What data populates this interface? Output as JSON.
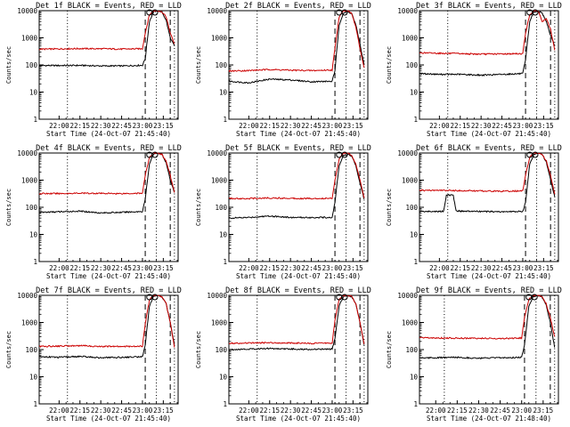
{
  "figure": {
    "ylabel": "Counts/sec",
    "xlabel": "Start Time (24-Oct-07 21:45:40)",
    "xtick_labels": [
      "22:00",
      "22:15",
      "22:30",
      "22:45",
      "23:00",
      "23:15"
    ],
    "ytick_labels": [
      "1",
      "10",
      "100",
      "1000",
      "10000"
    ],
    "line_colors": {
      "events": "#000000",
      "lld": "#cc0000"
    }
  },
  "chart_data": [
    {
      "type": "line",
      "title": "Det 1f BLACK = Events, RED = LLD",
      "xlabel": "Start Time (24-Oct-07 21:45:40)",
      "ylabel": "Counts/sec",
      "xlim": [
        "21:45:40",
        "23:25:40"
      ],
      "ylim": [
        1,
        10000
      ],
      "yscale": "log",
      "vlines": [
        {
          "time": "22:06",
          "style": "dotted"
        },
        {
          "time": "23:02",
          "style": "dashed"
        },
        {
          "time": "23:10",
          "style": "dotted"
        },
        {
          "time": "23:20",
          "style": "dashed"
        },
        {
          "time": "23:23",
          "style": "dotted"
        }
      ],
      "markers": [
        "23:05",
        "23:09"
      ],
      "series": [
        {
          "color": "#000000",
          "x": [
            "21:45:40",
            "22:00",
            "22:15",
            "22:30",
            "22:45",
            "23:00",
            "23:02",
            "23:05",
            "23:08",
            "23:11",
            "23:14",
            "23:17",
            "23:20",
            "23:23"
          ],
          "y": [
            95,
            95,
            96,
            92,
            92,
            97,
            170,
            4000,
            9000,
            10000,
            9000,
            4500,
            1000,
            500
          ]
        },
        {
          "color": "#cc0000",
          "x": [
            "21:45:40",
            "22:00",
            "22:15",
            "22:30",
            "22:45",
            "23:00",
            "23:02",
            "23:05",
            "23:08",
            "23:11",
            "23:14",
            "23:17",
            "23:20",
            "23:23"
          ],
          "y": [
            380,
            390,
            400,
            395,
            385,
            395,
            1500,
            7000,
            10000,
            10000,
            9000,
            6000,
            1500,
            600
          ]
        }
      ]
    },
    {
      "type": "line",
      "title": "Det 2f BLACK = Events, RED = LLD",
      "xlabel": "Start Time (24-Oct-07 21:45:40)",
      "ylabel": "Counts/sec",
      "xlim": [
        "21:45:40",
        "23:25:40"
      ],
      "ylim": [
        1,
        10000
      ],
      "yscale": "log",
      "vlines": [
        {
          "time": "22:06",
          "style": "dotted"
        },
        {
          "time": "23:02",
          "style": "dashed"
        },
        {
          "time": "23:10",
          "style": "dotted"
        },
        {
          "time": "23:20",
          "style": "dashed"
        },
        {
          "time": "23:23",
          "style": "dotted"
        }
      ],
      "markers": [
        "23:05",
        "23:09"
      ],
      "series": [
        {
          "color": "#000000",
          "x": [
            "21:45:40",
            "22:00",
            "22:15",
            "22:30",
            "22:45",
            "23:00",
            "23:02",
            "23:05",
            "23:08",
            "23:11",
            "23:14",
            "23:17",
            "23:20",
            "23:23"
          ],
          "y": [
            25,
            22,
            30,
            28,
            24,
            25,
            60,
            3000,
            8000,
            9000,
            8000,
            3000,
            600,
            100
          ]
        },
        {
          "color": "#cc0000",
          "x": [
            "21:45:40",
            "22:00",
            "22:15",
            "22:30",
            "22:45",
            "23:00",
            "23:02",
            "23:05",
            "23:08",
            "23:11",
            "23:14",
            "23:17",
            "23:20",
            "23:23"
          ],
          "y": [
            60,
            62,
            68,
            64,
            62,
            65,
            400,
            6000,
            10000,
            10000,
            8000,
            2500,
            400,
            80
          ]
        }
      ]
    },
    {
      "type": "line",
      "title": "Det 3f BLACK = Events, RED = LLD",
      "xlabel": "Start Time (24-Oct-07 21:45:40)",
      "ylabel": "Counts/sec",
      "xlim": [
        "21:45:40",
        "23:25:40"
      ],
      "ylim": [
        1,
        10000
      ],
      "yscale": "log",
      "vlines": [
        {
          "time": "22:06",
          "style": "dotted"
        },
        {
          "time": "23:02",
          "style": "dashed"
        },
        {
          "time": "23:10",
          "style": "dotted"
        },
        {
          "time": "23:20",
          "style": "dashed"
        },
        {
          "time": "23:23",
          "style": "dotted"
        }
      ],
      "markers": [
        "23:05",
        "23:09"
      ],
      "series": [
        {
          "color": "#000000",
          "x": [
            "21:45:40",
            "22:00",
            "22:15",
            "22:30",
            "22:45",
            "23:00",
            "23:02",
            "23:05",
            "23:08",
            "23:11",
            "23:14",
            "23:17",
            "23:20",
            "23:23"
          ],
          "y": [
            48,
            45,
            45,
            42,
            45,
            48,
            150,
            4000,
            9000,
            9500,
            8000,
            4000,
            1200,
            500
          ]
        },
        {
          "color": "#cc0000",
          "x": [
            "21:45:40",
            "22:00",
            "22:15",
            "22:30",
            "22:45",
            "23:00",
            "23:02",
            "23:05",
            "23:08",
            "23:11",
            "23:14",
            "23:17",
            "23:20",
            "23:23"
          ],
          "y": [
            280,
            270,
            260,
            250,
            255,
            260,
            1500,
            7000,
            10000,
            10000,
            4000,
            5000,
            2000,
            350
          ]
        }
      ]
    },
    {
      "type": "line",
      "title": "Det 4f BLACK = Events, RED = LLD",
      "xlabel": "Start Time (24-Oct-07 21:45:40)",
      "ylabel": "Counts/sec",
      "xlim": [
        "21:45:40",
        "23:25:40"
      ],
      "ylim": [
        1,
        10000
      ],
      "yscale": "log",
      "vlines": [
        {
          "time": "22:06",
          "style": "dotted"
        },
        {
          "time": "23:02",
          "style": "dashed"
        },
        {
          "time": "23:10",
          "style": "dotted"
        },
        {
          "time": "23:20",
          "style": "dashed"
        },
        {
          "time": "23:23",
          "style": "dotted"
        }
      ],
      "markers": [
        "23:05",
        "23:09"
      ],
      "series": [
        {
          "color": "#000000",
          "x": [
            "21:45:40",
            "22:00",
            "22:15",
            "22:30",
            "22:45",
            "23:00",
            "23:02",
            "23:05",
            "23:08",
            "23:11",
            "23:14",
            "23:17",
            "23:20",
            "23:23"
          ],
          "y": [
            65,
            68,
            72,
            62,
            65,
            70,
            200,
            4000,
            9000,
            10000,
            9000,
            4500,
            1000,
            350
          ]
        },
        {
          "color": "#cc0000",
          "x": [
            "21:45:40",
            "22:00",
            "22:15",
            "22:30",
            "22:45",
            "23:00",
            "23:02",
            "23:05",
            "23:08",
            "23:11",
            "23:14",
            "23:17",
            "23:20",
            "23:23"
          ],
          "y": [
            320,
            320,
            330,
            325,
            320,
            330,
            1500,
            7000,
            10000,
            10000,
            9000,
            5000,
            1500,
            350
          ]
        }
      ]
    },
    {
      "type": "line",
      "title": "Det 5f BLACK = Events, RED = LLD",
      "xlabel": "Start Time (24-Oct-07 21:45:40)",
      "ylabel": "Counts/sec",
      "xlim": [
        "21:45:40",
        "23:25:40"
      ],
      "ylim": [
        1,
        10000
      ],
      "yscale": "log",
      "vlines": [
        {
          "time": "22:06",
          "style": "dotted"
        },
        {
          "time": "23:02",
          "style": "dashed"
        },
        {
          "time": "23:10",
          "style": "dotted"
        },
        {
          "time": "23:20",
          "style": "dashed"
        },
        {
          "time": "23:23",
          "style": "dotted"
        }
      ],
      "markers": [
        "23:05",
        "23:09"
      ],
      "series": [
        {
          "color": "#000000",
          "x": [
            "21:45:40",
            "22:00",
            "22:15",
            "22:30",
            "22:45",
            "23:00",
            "23:02",
            "23:05",
            "23:08",
            "23:11",
            "23:14",
            "23:17",
            "23:20",
            "23:23"
          ],
          "y": [
            40,
            42,
            48,
            42,
            42,
            42,
            150,
            3500,
            8000,
            9000,
            8000,
            3500,
            800,
            200
          ]
        },
        {
          "color": "#cc0000",
          "x": [
            "21:45:40",
            "22:00",
            "22:15",
            "22:30",
            "22:45",
            "23:00",
            "23:02",
            "23:05",
            "23:08",
            "23:11",
            "23:14",
            "23:17",
            "23:20",
            "23:23"
          ],
          "y": [
            210,
            210,
            220,
            215,
            210,
            215,
            1000,
            6000,
            10000,
            10000,
            8000,
            4000,
            1000,
            220
          ]
        }
      ]
    },
    {
      "type": "line",
      "title": "Det 6f BLACK = Events, RED = LLD",
      "xlabel": "Start Time (24-Oct-07 21:45:40)",
      "ylabel": "Counts/sec",
      "xlim": [
        "21:45:40",
        "23:25:40"
      ],
      "ylim": [
        1,
        10000
      ],
      "yscale": "log",
      "vlines": [
        {
          "time": "22:06",
          "style": "dotted"
        },
        {
          "time": "23:02",
          "style": "dashed"
        },
        {
          "time": "23:10",
          "style": "dotted"
        },
        {
          "time": "23:20",
          "style": "dashed"
        },
        {
          "time": "23:23",
          "style": "dotted"
        }
      ],
      "markers": [
        "23:05",
        "23:09"
      ],
      "series": [
        {
          "color": "#000000",
          "x": [
            "21:45:40",
            "22:03",
            "22:05",
            "22:10",
            "22:12",
            "22:15",
            "22:30",
            "22:45",
            "23:00",
            "23:02",
            "23:05",
            "23:08",
            "23:11",
            "23:14",
            "23:17",
            "23:20",
            "23:23"
          ],
          "y": [
            70,
            70,
            280,
            280,
            75,
            72,
            70,
            68,
            70,
            150,
            4000,
            9000,
            10000,
            9000,
            4500,
            1000,
            250
          ]
        },
        {
          "color": "#cc0000",
          "x": [
            "21:45:40",
            "22:00",
            "22:15",
            "22:30",
            "22:45",
            "23:00",
            "23:02",
            "23:05",
            "23:08",
            "23:11",
            "23:14",
            "23:17",
            "23:20",
            "23:23"
          ],
          "y": [
            420,
            420,
            410,
            400,
            390,
            400,
            1500,
            7000,
            10000,
            10000,
            9000,
            5000,
            1500,
            300
          ]
        }
      ]
    },
    {
      "type": "line",
      "title": "Det 7f BLACK = Events, RED = LLD",
      "xlabel": "Start Time (24-Oct-07 21:45:40)",
      "ylabel": "Counts/sec",
      "xlim": [
        "21:45:40",
        "23:25:40"
      ],
      "ylim": [
        1,
        10000
      ],
      "yscale": "log",
      "vlines": [
        {
          "time": "22:06",
          "style": "dotted"
        },
        {
          "time": "23:02",
          "style": "dashed"
        },
        {
          "time": "23:10",
          "style": "dotted"
        },
        {
          "time": "23:20",
          "style": "dashed"
        },
        {
          "time": "23:23",
          "style": "dotted"
        }
      ],
      "markers": [
        "23:05",
        "23:09"
      ],
      "series": [
        {
          "color": "#000000",
          "x": [
            "21:45:40",
            "22:00",
            "22:15",
            "22:30",
            "22:45",
            "23:00",
            "23:02",
            "23:05",
            "23:08",
            "23:11",
            "23:14",
            "23:17",
            "23:20",
            "23:23"
          ],
          "y": [
            55,
            52,
            56,
            50,
            52,
            55,
            150,
            4000,
            9000,
            10000,
            9000,
            5000,
            1000,
            150
          ]
        },
        {
          "color": "#cc0000",
          "x": [
            "21:45:40",
            "22:00",
            "22:15",
            "22:30",
            "22:45",
            "23:00",
            "23:02",
            "23:05",
            "23:08",
            "23:11",
            "23:14",
            "23:17",
            "23:20",
            "23:23"
          ],
          "y": [
            130,
            135,
            140,
            130,
            130,
            135,
            900,
            7000,
            10000,
            10000,
            9000,
            5000,
            1000,
            120
          ]
        }
      ]
    },
    {
      "type": "line",
      "title": "Det 8f BLACK = Events, RED = LLD",
      "xlabel": "Start Time (24-Oct-07 21:45:40)",
      "ylabel": "Counts/sec",
      "xlim": [
        "21:45:40",
        "23:25:40"
      ],
      "ylim": [
        1,
        10000
      ],
      "yscale": "log",
      "vlines": [
        {
          "time": "22:06",
          "style": "dotted"
        },
        {
          "time": "23:02",
          "style": "dashed"
        },
        {
          "time": "23:10",
          "style": "dotted"
        },
        {
          "time": "23:20",
          "style": "dashed"
        },
        {
          "time": "23:23",
          "style": "dotted"
        }
      ],
      "markers": [
        "23:05",
        "23:09"
      ],
      "series": [
        {
          "color": "#000000",
          "x": [
            "21:45:40",
            "22:00",
            "22:15",
            "22:30",
            "22:45",
            "23:00",
            "23:02",
            "23:05",
            "23:08",
            "23:11",
            "23:14",
            "23:17",
            "23:20",
            "23:23"
          ],
          "y": [
            100,
            105,
            110,
            105,
            102,
            105,
            250,
            4000,
            9000,
            10000,
            9000,
            5000,
            1000,
            150
          ]
        },
        {
          "color": "#cc0000",
          "x": [
            "21:45:40",
            "22:00",
            "22:15",
            "22:30",
            "22:45",
            "23:00",
            "23:02",
            "23:05",
            "23:08",
            "23:11",
            "23:14",
            "23:17",
            "23:20",
            "23:23"
          ],
          "y": [
            170,
            175,
            180,
            175,
            170,
            175,
            1200,
            7000,
            10000,
            10000,
            9000,
            5000,
            1000,
            160
          ]
        }
      ]
    },
    {
      "type": "line",
      "title": "Det 9f BLACK = Events, RED = LLD",
      "xlabel": "Start Time (24-Oct-07 21:48:40)",
      "ylabel": "Counts/sec",
      "xlim": [
        "21:48:40",
        "23:25:40"
      ],
      "ylim": [
        1,
        10000
      ],
      "yscale": "log",
      "vlines": [
        {
          "time": "22:06",
          "style": "dotted"
        },
        {
          "time": "23:02",
          "style": "dashed"
        },
        {
          "time": "23:10",
          "style": "dotted"
        },
        {
          "time": "23:20",
          "style": "dashed"
        },
        {
          "time": "23:23",
          "style": "dotted"
        }
      ],
      "markers": [
        "23:05",
        "23:09"
      ],
      "series": [
        {
          "color": "#000000",
          "x": [
            "21:48:40",
            "22:00",
            "22:15",
            "22:30",
            "22:45",
            "23:00",
            "23:02",
            "23:05",
            "23:08",
            "23:11",
            "23:14",
            "23:17",
            "23:20",
            "23:23"
          ],
          "y": [
            50,
            50,
            52,
            48,
            50,
            52,
            150,
            4000,
            9000,
            10000,
            9000,
            4500,
            1000,
            120
          ]
        },
        {
          "color": "#cc0000",
          "x": [
            "21:48:40",
            "22:00",
            "22:15",
            "22:30",
            "22:45",
            "23:00",
            "23:02",
            "23:05",
            "23:08",
            "23:11",
            "23:14",
            "23:17",
            "23:20",
            "23:23"
          ],
          "y": [
            270,
            270,
            265,
            260,
            255,
            265,
            1500,
            7000,
            10000,
            10000,
            9000,
            5000,
            1500,
            300
          ]
        }
      ]
    }
  ]
}
